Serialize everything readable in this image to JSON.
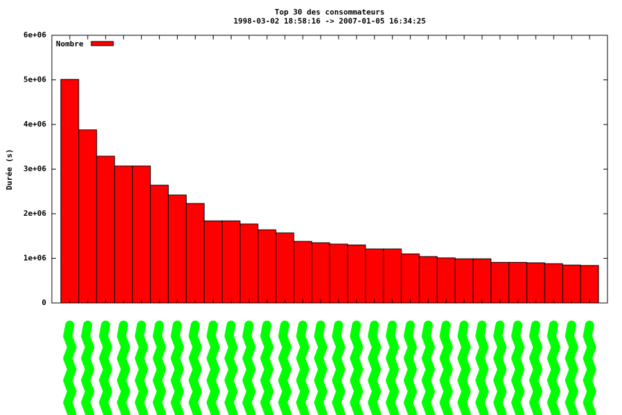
{
  "chart_data": {
    "type": "bar",
    "title": "Top 30 des consommateurs",
    "subtitle": "1998-03-02 18:58:16 -> 2007-01-05 16:34:25",
    "y_label": "Durée (s)",
    "categories": [
      null,
      null,
      null,
      null,
      null,
      null,
      null,
      null,
      null,
      null,
      null,
      null,
      null,
      null,
      null,
      null,
      null,
      null,
      null,
      null,
      null,
      null,
      null,
      null,
      null,
      null,
      null,
      null,
      null,
      null
    ],
    "series": [
      {
        "name": "Nombre",
        "color": "#ff0000",
        "values": [
          5010000,
          3880000,
          3290000,
          3070000,
          3070000,
          2640000,
          2420000,
          2230000,
          1840000,
          1840000,
          1770000,
          1640000,
          1570000,
          1380000,
          1350000,
          1320000,
          1300000,
          1210000,
          1210000,
          1100000,
          1040000,
          1010000,
          990000,
          990000,
          910000,
          910000,
          900000,
          880000,
          850000,
          840000
        ]
      }
    ],
    "ylim": [
      0,
      6000000
    ],
    "yticks": [
      0,
      {
        "value": 1000000,
        "label": "1e+06"
      },
      {
        "value": 2000000,
        "label": "2e+06"
      },
      {
        "value": 3000000,
        "label": "3e+06"
      },
      {
        "value": 4000000,
        "label": "4e+06"
      },
      {
        "value": 5000000,
        "label": "5e+06"
      },
      {
        "value": 6000000,
        "label": "6e+06"
      }
    ],
    "legend": "top-left",
    "grid": false
  }
}
